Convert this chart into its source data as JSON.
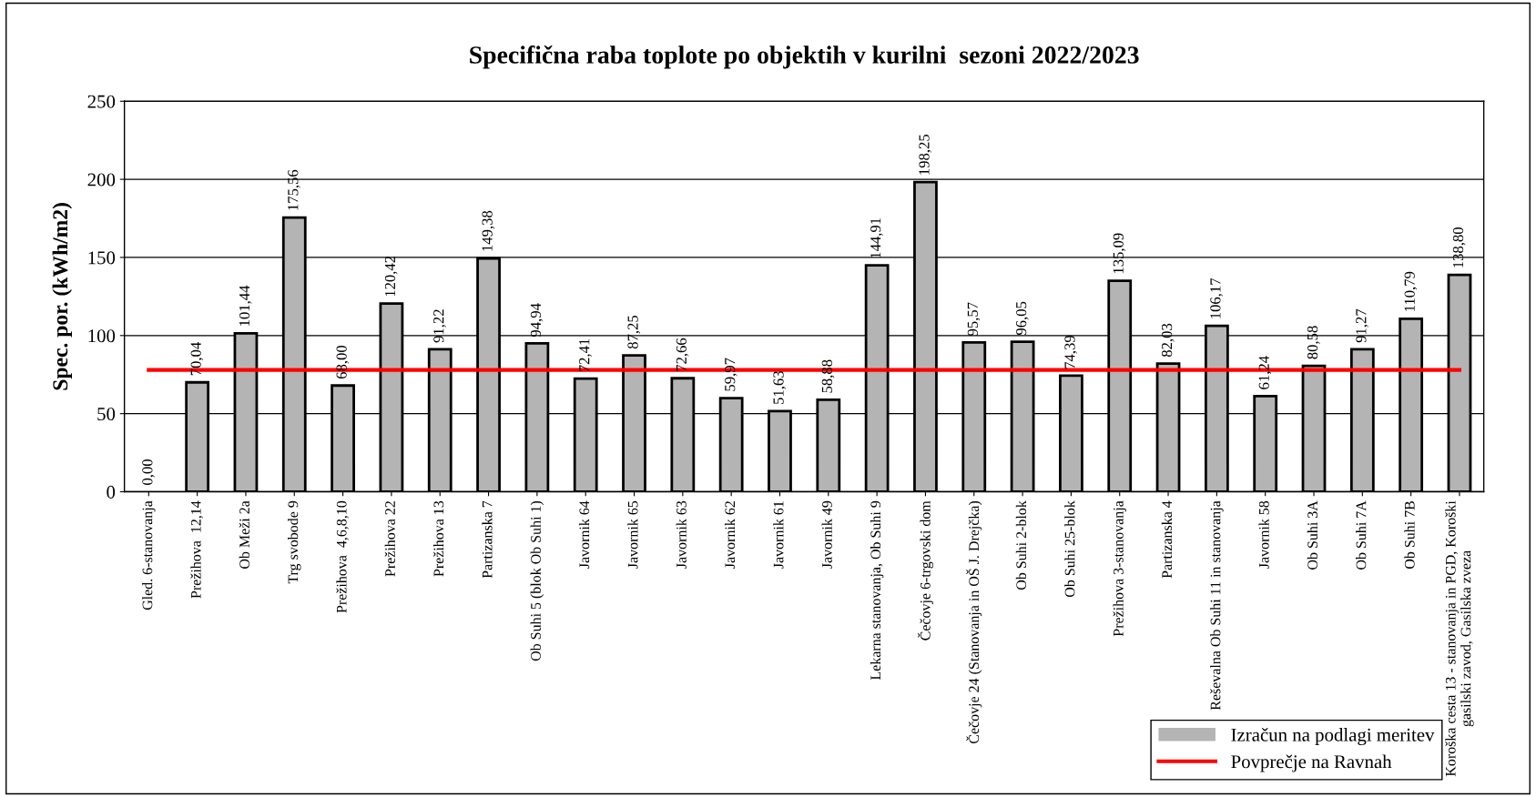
{
  "chart_data": {
    "type": "bar",
    "title": "Specifična raba toplote po objektih v kurilni  sezoni 2022/2023",
    "ylabel": "Spec. por. (kWh/m2)",
    "categories": [
      "Gled. 6-stanovanja",
      "Prežihova  12,14",
      "Ob Meži 2a",
      "Trg svobode 9",
      "Prežihova  4,6,8,10",
      "Prežihova 22",
      "Prežihova 13",
      "Partizanska 7",
      "Ob Suhi 5 (blok Ob Suhi 1)",
      "Javornik 64",
      "Javornik 65",
      "Javornik 63",
      "Javornik 62",
      "Javornik 61",
      "Javornik 49",
      "Lekarna stanovanja, Ob Suhi 9",
      "Čečovje 6-trgovski dom",
      "Čečovje 24 (Stanovanja in OŠ J. Drejčka)",
      "Ob Suhi 2-blok",
      "Ob Suhi 25-blok",
      "Prežihova 3-stanovanja",
      "Partizanska 4",
      "Reševalna Ob Suhi 11 in stanovanja",
      "Javornik 58",
      "Ob Suhi 3A",
      "Ob Suhi 7A",
      "Ob Suhi 7B",
      "Koroška cesta 13 - stanovanja in PGD, Koroški gasilski zavod, Gasilska zveza"
    ],
    "series": [
      {
        "name": "Izračun na podlagi meritev",
        "color": "#b4b4b4",
        "values": [
          0.0,
          70.04,
          101.44,
          175.56,
          68.0,
          120.42,
          91.22,
          149.38,
          94.94,
          72.41,
          87.25,
          72.66,
          59.97,
          51.63,
          58.88,
          144.91,
          198.25,
          95.57,
          96.05,
          74.39,
          135.09,
          82.03,
          106.17,
          61.24,
          80.58,
          91.27,
          110.79,
          138.8
        ],
        "value_labels": [
          "0,00",
          "70,04",
          "101,44",
          "175,56",
          "68,00",
          "120,42",
          "91,22",
          "149,38",
          "94,94",
          "72,41",
          "87,25",
          "72,66",
          "59,97",
          "51,63",
          "58,88",
          "144,91",
          "198,25",
          "95,57",
          "96,05",
          "74,39",
          "135,09",
          "82,03",
          "106,17",
          "61,24",
          "80,58",
          "91,27",
          "110,79",
          "138,80"
        ]
      },
      {
        "name": "Povprečje na Ravnah",
        "type": "line",
        "color": "#ff0000",
        "values": [
          78,
          78,
          78,
          78,
          78,
          78,
          78,
          78,
          78,
          78,
          78,
          78,
          78,
          78,
          78,
          78,
          78,
          78,
          78,
          78,
          78,
          78,
          78,
          78,
          78,
          78,
          78,
          78
        ]
      }
    ],
    "ylim": [
      0,
      250
    ],
    "yticks": [
      0,
      50,
      100,
      150,
      200,
      250
    ],
    "grid": "y",
    "legend": "bottom right",
    "marker": "none",
    "line_style": "solid"
  }
}
